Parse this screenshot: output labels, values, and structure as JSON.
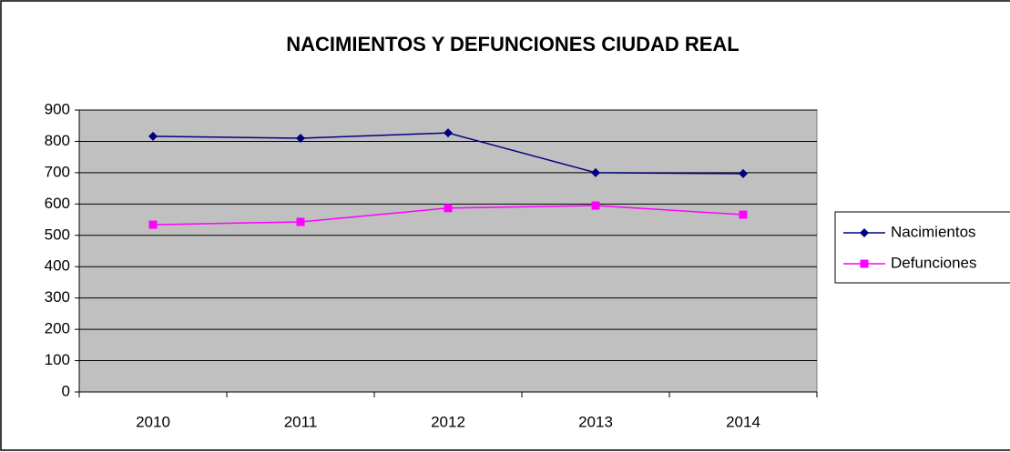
{
  "chart_data": {
    "type": "line",
    "title": "NACIMIENTOS Y DEFUNCIONES CIUDAD REAL",
    "categories": [
      "2010",
      "2011",
      "2012",
      "2013",
      "2014"
    ],
    "series": [
      {
        "name": "Nacimientos",
        "color": "#000080",
        "marker": "diamond",
        "values": [
          816,
          810,
          827,
          700,
          697
        ]
      },
      {
        "name": "Defunciones",
        "color": "#ff00ff",
        "marker": "square",
        "values": [
          534,
          543,
          587,
          595,
          566
        ]
      }
    ],
    "ylim": [
      0,
      900
    ],
    "yticks": [
      0,
      100,
      200,
      300,
      400,
      500,
      600,
      700,
      800,
      900
    ],
    "grid": true,
    "plot_background": "#c0c0c0",
    "legend": "right"
  }
}
